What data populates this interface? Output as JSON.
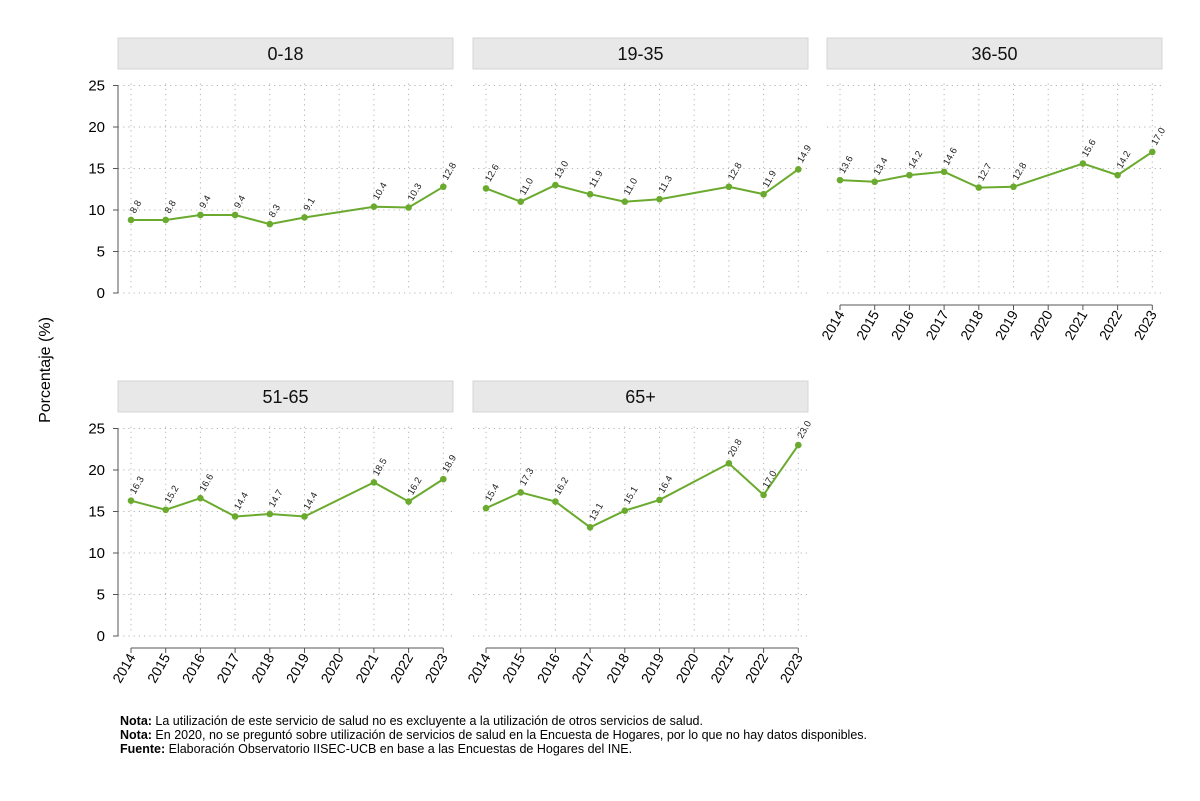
{
  "chart_data": {
    "type": "line",
    "ylabel": "Porcentaje (%)",
    "ylim": [
      0,
      25
    ],
    "yticks": [
      0,
      5,
      10,
      15,
      20,
      25
    ],
    "categories": [
      "2014",
      "2015",
      "2016",
      "2017",
      "2018",
      "2019",
      "2020",
      "2021",
      "2022",
      "2023"
    ],
    "line_color": "#6aaa2e",
    "panels": [
      {
        "title": "0-18",
        "values": [
          8.8,
          8.8,
          9.4,
          9.4,
          8.3,
          9.1,
          null,
          10.4,
          10.3,
          12.8
        ],
        "labels": [
          "8.8",
          "8.8",
          "9.4",
          "9.4",
          "8.3",
          "9.1",
          null,
          "10.4",
          "10.3",
          "12.8"
        ]
      },
      {
        "title": "19-35",
        "values": [
          12.6,
          11.0,
          13.0,
          11.9,
          11.0,
          11.3,
          null,
          12.8,
          11.9,
          14.9
        ],
        "labels": [
          "12.6",
          "11.0",
          "13.0",
          "11.9",
          "11.0",
          "11.3",
          null,
          "12.8",
          "11.9",
          "14.9"
        ]
      },
      {
        "title": "36-50",
        "values": [
          13.6,
          13.4,
          14.2,
          14.6,
          12.7,
          12.8,
          null,
          15.6,
          14.2,
          17.0
        ],
        "labels": [
          "13.6",
          "13.4",
          "14.2",
          "14.6",
          "12.7",
          "12.8",
          null,
          "15.6",
          "14.2",
          "17.0"
        ]
      },
      {
        "title": "51-65",
        "values": [
          16.3,
          15.2,
          16.6,
          14.4,
          14.7,
          14.4,
          null,
          18.5,
          16.2,
          18.9
        ],
        "labels": [
          "16.3",
          "15.2",
          "16.6",
          "14.4",
          "14.7",
          "14.4",
          null,
          "18.5",
          "16.2",
          "18.9"
        ]
      },
      {
        "title": "65+",
        "values": [
          15.4,
          17.3,
          16.2,
          13.1,
          15.1,
          16.4,
          null,
          20.8,
          17.0,
          23.0
        ],
        "labels": [
          "15.4",
          "17.3",
          "16.2",
          "13.1",
          "15.1",
          "16.4",
          null,
          "20.8",
          "17.0",
          "23.0"
        ]
      }
    ]
  },
  "notes": [
    {
      "label": "Nota:",
      "text": " La utilización de este servicio de salud no es excluyente a la utilización de otros servicios de salud."
    },
    {
      "label": "Nota:",
      "text": " En 2020, no se preguntó sobre utilización de servicios de salud en la Encuesta de Hogares, por lo que no hay datos disponibles."
    },
    {
      "label": "Fuente:",
      "text": " Elaboración Observatorio IISEC-UCB en base a las Encuestas de Hogares del INE."
    }
  ]
}
